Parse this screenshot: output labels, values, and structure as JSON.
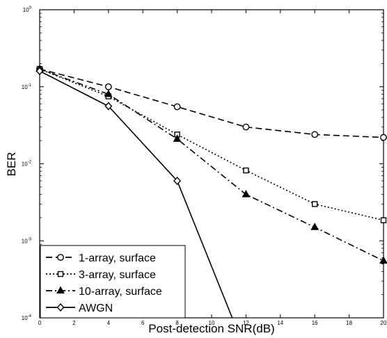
{
  "chart_data": {
    "type": "line",
    "title": "",
    "xlabel": "Post-detection SNR(dB)",
    "ylabel": "BER",
    "xlim": [
      0,
      20
    ],
    "ylim": [
      0.0001,
      1
    ],
    "y_scale": "log",
    "grid": false,
    "legend_position": "bottom-left",
    "x_ticks": [
      "0",
      "2",
      "4",
      "6",
      "8",
      "10",
      "12",
      "14",
      "16",
      "18",
      "20"
    ],
    "y_ticks": [
      {
        "base": "10",
        "exp": "0"
      },
      {
        "base": "10",
        "exp": "-1"
      },
      {
        "base": "10",
        "exp": "-2"
      },
      {
        "base": "10",
        "exp": "-3"
      },
      {
        "base": "10",
        "exp": "-4"
      }
    ],
    "series": [
      {
        "name": "1-array, surface",
        "marker": "circle",
        "dash": "long-dash",
        "x": [
          0,
          4,
          8,
          12,
          16,
          20
        ],
        "y": [
          0.17,
          0.1,
          0.055,
          0.03,
          0.024,
          0.022
        ]
      },
      {
        "name": "3-array, surface",
        "marker": "square",
        "dash": "dotted",
        "x": [
          0,
          4,
          8,
          12,
          16,
          20
        ],
        "y": [
          0.17,
          0.075,
          0.024,
          0.0082,
          0.003,
          0.00185
        ]
      },
      {
        "name": "10-array, surface",
        "marker": "triangle",
        "dash": "dash-dot",
        "x": [
          0,
          4,
          8,
          12,
          16,
          20
        ],
        "y": [
          0.17,
          0.08,
          0.021,
          0.004,
          0.0015,
          0.00055
        ]
      },
      {
        "name": "AWGN",
        "marker": "diamond",
        "dash": "solid",
        "x": [
          0,
          4,
          8,
          11.2
        ],
        "y": [
          0.16,
          0.056,
          0.006,
          0.0001
        ]
      }
    ]
  }
}
